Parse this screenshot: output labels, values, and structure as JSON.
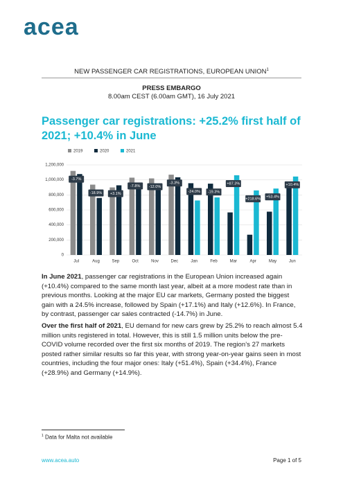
{
  "logo": "acea",
  "header": {
    "title": "NEW PASSENGER CAR REGISTRATIONS, EUROPEAN UNION",
    "footnote_marker": "1",
    "embargo": "PRESS EMBARGO",
    "time": "8.00am CEST (6.00am GMT), 16 July 2021"
  },
  "headline": "Passenger car registrations: +25.2% first half of 2021; +10.4% in June",
  "chart_data": {
    "type": "bar",
    "categories": [
      "Jul",
      "Aug",
      "Sep",
      "Oct",
      "Nov",
      "Dec",
      "Jan",
      "Feb",
      "Mar",
      "Apr",
      "May",
      "Jun"
    ],
    "series": [
      {
        "name": "2019",
        "color": "#8c8c8c",
        "values": [
          1120000,
          937000,
          900000,
          1030000,
          1020000,
          1070000,
          null,
          null,
          null,
          null,
          null,
          null
        ]
      },
      {
        "name": "2020",
        "color": "#0f2a3d",
        "values": [
          1078000,
          760000,
          928000,
          953000,
          897000,
          1035000,
          956000,
          950000,
          567000,
          270000,
          577000,
          946000
        ]
      },
      {
        "name": "2021",
        "color": "#1ab8d2",
        "values": [
          null,
          null,
          null,
          null,
          null,
          null,
          726000,
          767000,
          1062000,
          860000,
          885000,
          1045000
        ]
      }
    ],
    "change_labels": [
      "-3.7%",
      "-18.9%",
      "+3.1%",
      "-7.8%",
      "-12.0%",
      "-3.3%",
      "-24.0%",
      "-19.3%",
      "+87.3%",
      "+218.6%",
      "+53.4%",
      "+10.4%"
    ],
    "ylim": [
      0,
      1200000
    ],
    "yticks": [
      0,
      {
        "value": 200000,
        "label": "200,000"
      },
      {
        "value": 400000,
        "label": "400,000"
      },
      {
        "value": 600000,
        "label": "600,000"
      },
      {
        "value": 800000,
        "label": "800,000"
      },
      {
        "value": 1000000,
        "label": "1,000,000"
      },
      {
        "value": 1200000,
        "label": "1,200,000"
      }
    ],
    "grid": true
  },
  "paragraphs": [
    {
      "lead": "In June 2021",
      "text": ", passenger car registrations in the European Union increased again (+10.4%) compared to the same month last year, albeit at a more modest rate than in previous months. Looking at the major EU car markets, Germany posted the biggest gain with a 24.5% increase, followed by Spain (+17.1%) and Italy (+12.6%). In France, by contrast, passenger car sales contracted (-14.7%) in June."
    },
    {
      "lead": "Over the first half of 2021",
      "text": ", EU demand for new cars grew by 25.2% to reach almost 5.4 million units registered in total. However, this is still 1.5 million units below the pre-COVID volume recorded over the first six months of 2019. The region’s 27 markets posted rather similar results so far this year, with strong year-on-year gains seen in most countries, including the four major ones: Italy (+51.4%), Spain (+34.4%), France (+28.9%) and Germany (+14.9%)."
    }
  ],
  "footnote": {
    "marker": "1",
    "text": "Data for Malta not available"
  },
  "footer": {
    "url": "www.acea.auto",
    "page": "Page 1 of 5"
  }
}
